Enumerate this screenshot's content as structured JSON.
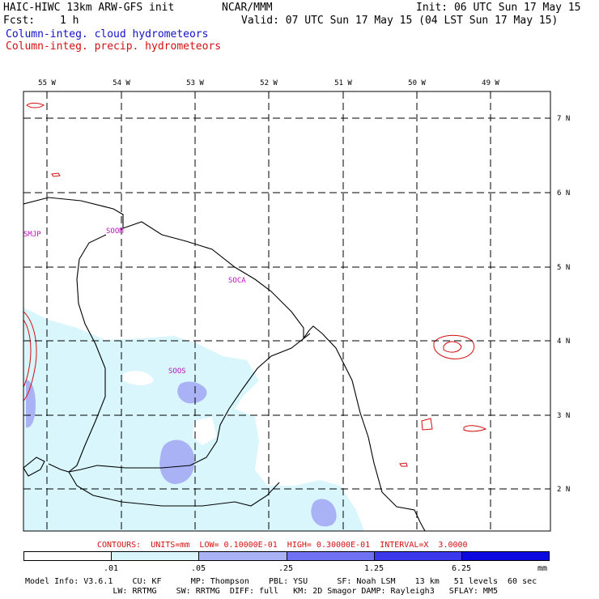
{
  "header": {
    "title": "HAIC-HIWC 13km ARW-GFS init",
    "org": "NCAR/MMM",
    "init": "Init: 06 UTC Sun 17 May 15",
    "fcst_label": "Fcst:",
    "fcst_value": "1 h",
    "valid": "Valid: 07 UTC Sun 17 May 15 (04 LST Sun 17 May 15)",
    "legend_cloud": "Column-integ. cloud hydrometeors",
    "legend_precip": "Column-integ. precip. hydrometeors"
  },
  "colors": {
    "cloud": "#1010c8",
    "precip": "#d41010"
  },
  "axes": {
    "lon_labels": [
      "55 W",
      "54 W",
      "53 W",
      "52 W",
      "51 W",
      "50 W",
      "49 W"
    ],
    "lat_labels": [
      "7 N",
      "6 N",
      "5 N",
      "4 N",
      "3 N",
      "2 N"
    ]
  },
  "stations": [
    "SMJP",
    "SOOM",
    "SOCA",
    "SOOS"
  ],
  "contours_text": "CONTOURS:  UNITS=mm  LOW= 0.10000E-01  HIGH= 0.30000E-01  INTERVAL=X  3.0000",
  "colorbar": {
    "ticks": [
      ".01",
      ".05",
      ".25",
      "1.25",
      "6.25"
    ],
    "unit": "mm",
    "colors": [
      "#ffffff",
      "#d8f6fc",
      "#aab2f6",
      "#6e72f2",
      "#3a38ec",
      "#0c08e0"
    ]
  },
  "footer": {
    "line1": "Model Info: V3.6.1    CU: KF      MP: Thompson    PBL: YSU      SF: Noah LSM    13 km   51 levels  60 sec",
    "line2": "                  LW: RRTMG    SW: RRTMG  DIFF: full   KM: 2D Smagor DAMP: Rayleigh3   SFLAY: MM5"
  }
}
